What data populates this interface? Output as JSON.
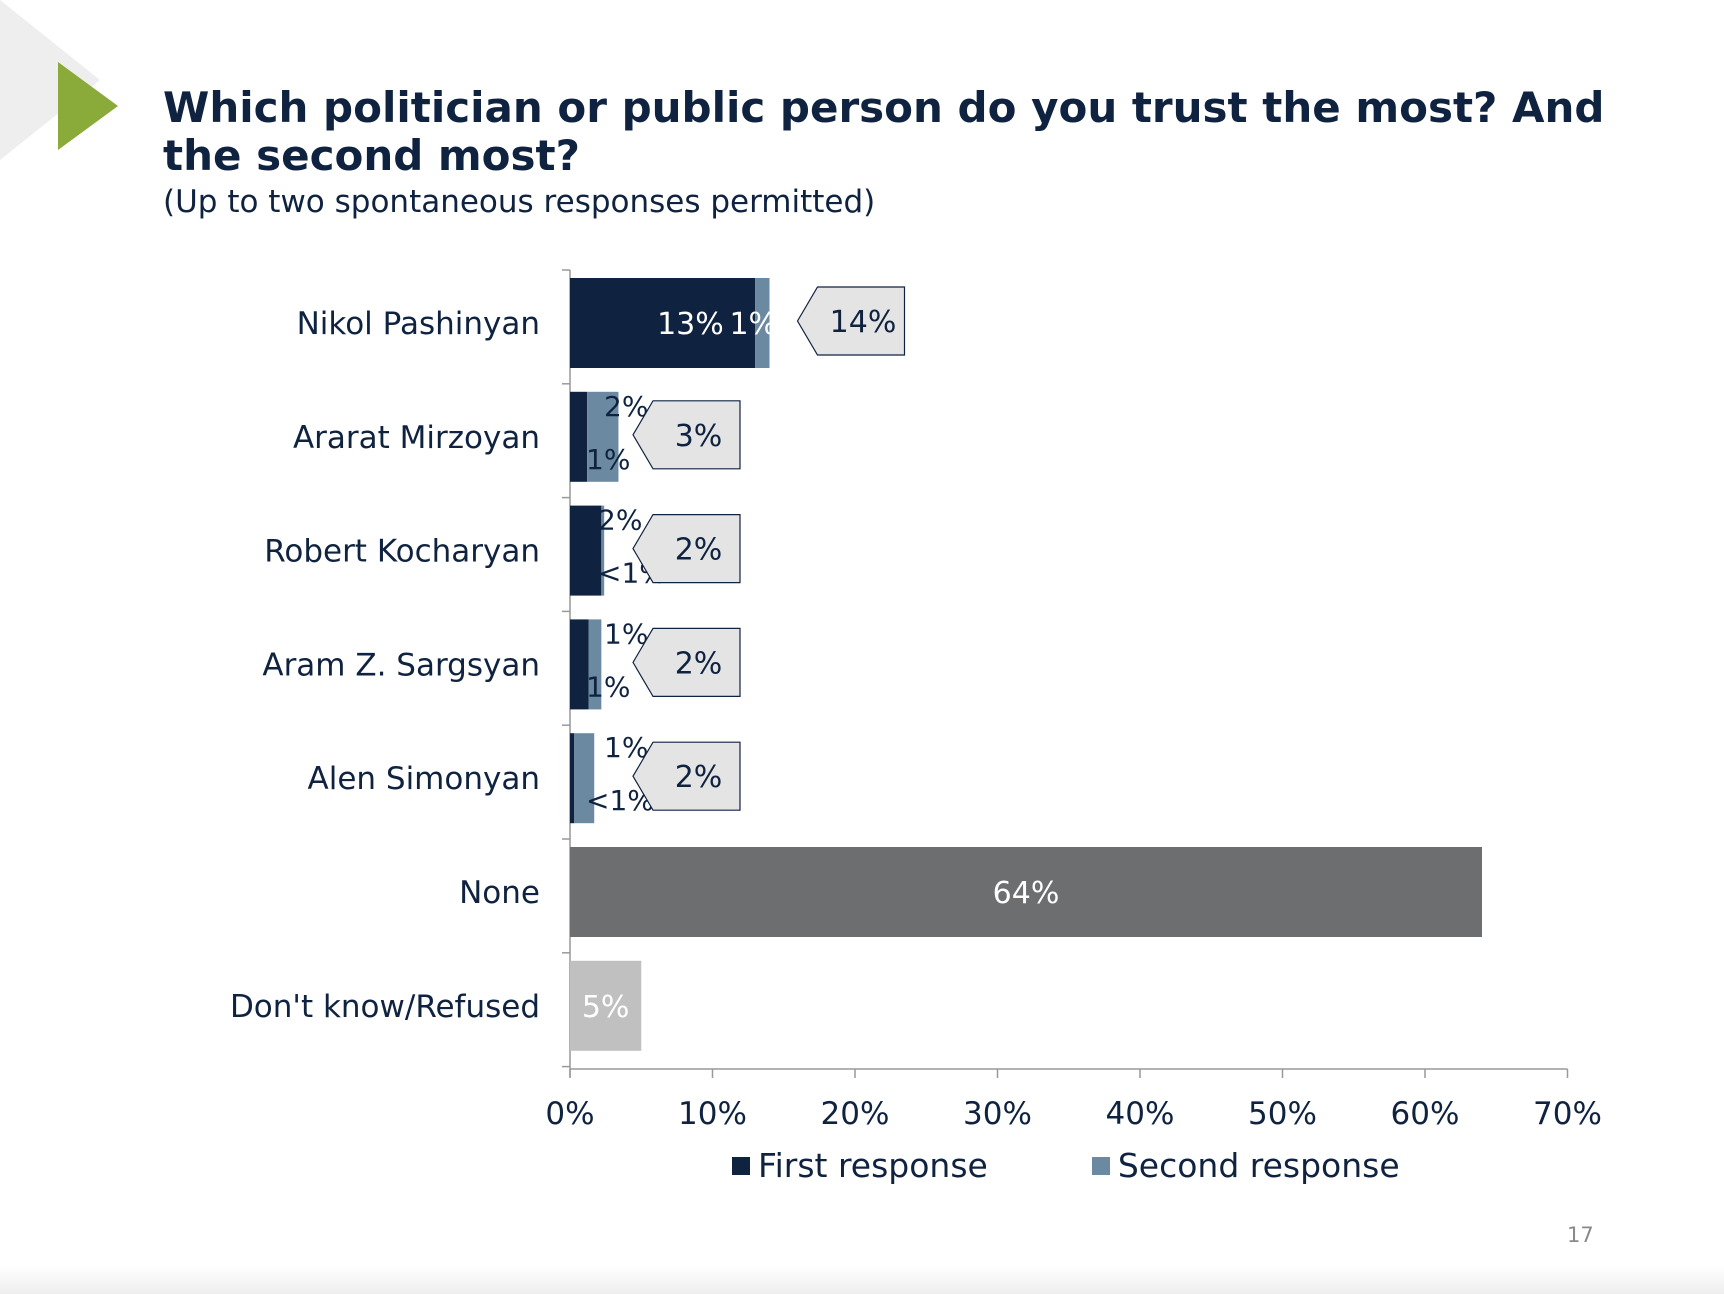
{
  "header": {
    "title": "Which politician or public person do you trust the most? And the second most?",
    "subtitle": "(Up to two spontaneous responses permitted)"
  },
  "page_number": "17",
  "colors": {
    "first_response": "#0f2340",
    "second_response": "#6b8aa1",
    "none": "#6d6e70",
    "dont_know": "#c0c0c0",
    "accent_triangle": "#8aaa3a",
    "callout_fill": "#e4e4e4"
  },
  "icons": [
    "play-triangle-icon"
  ],
  "legend": {
    "first_label": "First response",
    "second_label": "Second response"
  },
  "chart_data": {
    "type": "bar",
    "orientation": "horizontal",
    "stacked": true,
    "categories": [
      "Nikol Pashinyan",
      "Ararat Mirzoyan",
      "Robert Kocharyan",
      "Aram Z. Sargsyan",
      "Alen Simonyan",
      "None",
      "Don't know/Refused"
    ],
    "series": [
      {
        "name": "First response",
        "values": [
          13,
          1.2,
          2.2,
          1.3,
          0.3,
          null,
          null
        ],
        "labels": [
          "13%",
          "1%",
          "2%",
          "1%",
          "<1%",
          "",
          ""
        ]
      },
      {
        "name": "Second response",
        "values": [
          1,
          2.2,
          0.2,
          0.9,
          1.4,
          null,
          null
        ],
        "labels": [
          "1%",
          "2%",
          "<1%",
          "1%",
          "1%",
          "",
          ""
        ]
      },
      {
        "name": "None",
        "values": [
          null,
          null,
          null,
          null,
          null,
          64,
          null
        ],
        "labels": [
          "",
          "",
          "",
          "",
          "",
          "64%",
          ""
        ]
      },
      {
        "name": "Don't know/Refused",
        "values": [
          null,
          null,
          null,
          null,
          null,
          null,
          5
        ],
        "labels": [
          "",
          "",
          "",
          "",
          "",
          "",
          "5%"
        ]
      }
    ],
    "totals": [
      "14%",
      "3%",
      "2%",
      "2%",
      "2%",
      "",
      ""
    ],
    "xlim": [
      0,
      70
    ],
    "xticks": [
      "0%",
      "10%",
      "20%",
      "30%",
      "40%",
      "50%",
      "60%",
      "70%"
    ],
    "grid": false,
    "legend_position": "bottom"
  }
}
